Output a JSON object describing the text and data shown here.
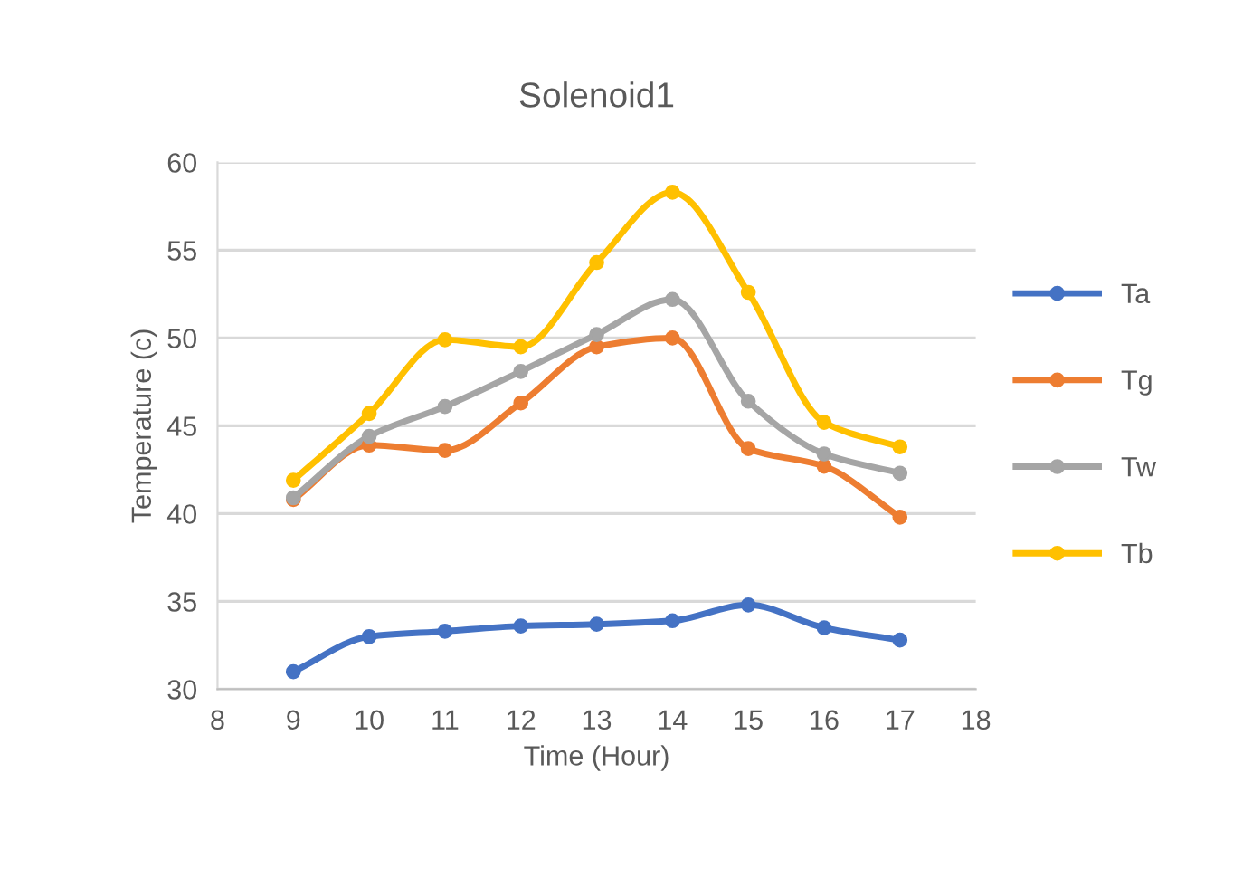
{
  "chart_data": {
    "type": "line",
    "title": "Solenoid1",
    "xlabel": "Time (Hour)",
    "ylabel": "Temperature (c)",
    "x": [
      9,
      10,
      11,
      12,
      13,
      14,
      15,
      16,
      17
    ],
    "series": [
      {
        "name": "Ta",
        "color": "#4472c4",
        "values": [
          31.0,
          33.0,
          33.3,
          33.6,
          33.7,
          33.9,
          34.8,
          33.5,
          32.8
        ]
      },
      {
        "name": "Tg",
        "color": "#ed7d31",
        "values": [
          40.8,
          43.9,
          43.6,
          46.3,
          49.5,
          50.0,
          43.7,
          42.7,
          39.8
        ]
      },
      {
        "name": "Tw",
        "color": "#a5a5a5",
        "values": [
          40.9,
          44.4,
          46.1,
          48.1,
          50.2,
          52.2,
          46.4,
          43.4,
          42.3
        ]
      },
      {
        "name": "Tb",
        "color": "#ffc000",
        "values": [
          41.9,
          45.7,
          49.9,
          49.5,
          54.3,
          58.3,
          52.6,
          45.2,
          43.8
        ]
      }
    ],
    "xlim": [
      8,
      18
    ],
    "xticks": [
      8,
      9,
      10,
      11,
      12,
      13,
      14,
      15,
      16,
      17,
      18
    ],
    "ylim": [
      30,
      60
    ],
    "yticks": [
      30,
      35,
      40,
      45,
      50,
      55,
      60
    ],
    "grid": "y",
    "legend": "right",
    "marker": "circle",
    "line_style": "solid"
  }
}
